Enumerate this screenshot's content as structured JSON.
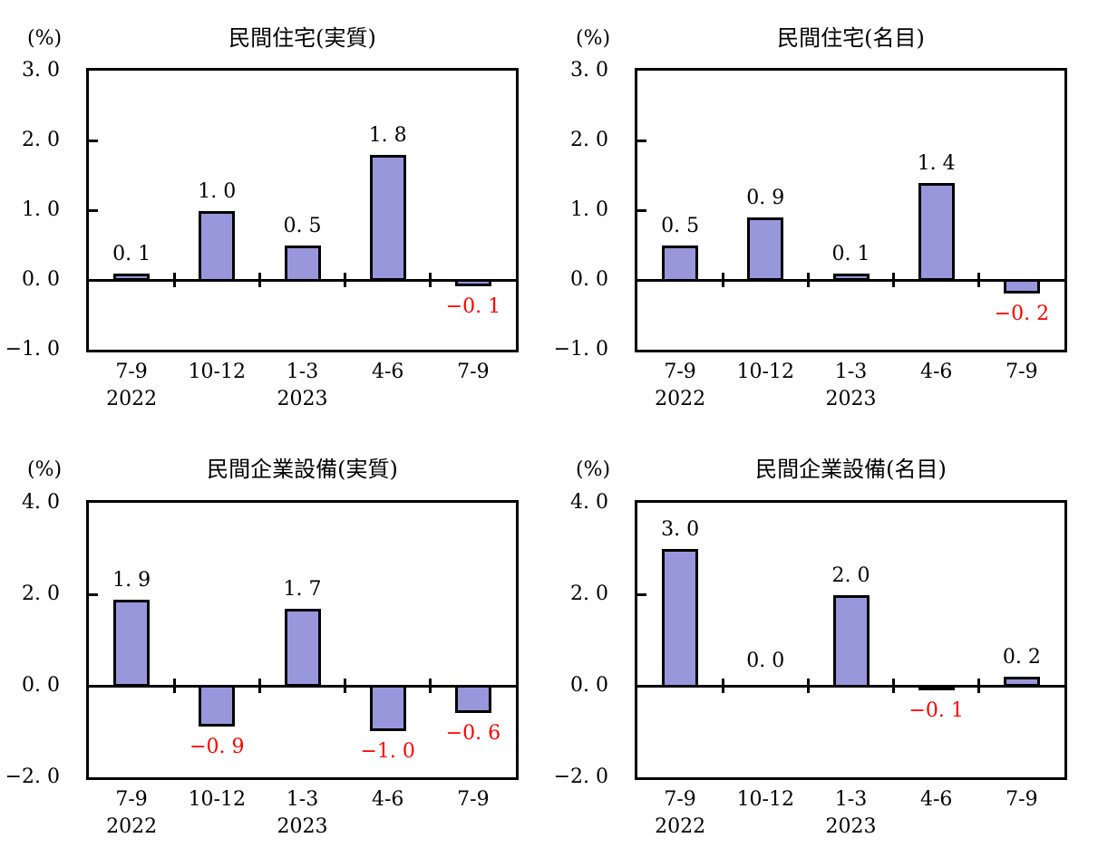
{
  "figure": {
    "background": "#ffffff",
    "unit_label": "(%)",
    "colors": {
      "bar_fill": "#9897DB",
      "bar_border": "#000000",
      "axis": "#000000",
      "text": "#000000",
      "negative_value_label": "#FF0000"
    }
  },
  "chart_data": [
    {
      "type": "bar",
      "title": "民間住宅(実質)",
      "unit_label": "(%)",
      "categories": [
        "7-9",
        "10-12",
        "1-3",
        "4-6",
        "7-9"
      ],
      "year_labels": [
        {
          "slot": 0,
          "text": "2022"
        },
        {
          "slot": 2,
          "text": "2023"
        }
      ],
      "values": [
        0.1,
        1.0,
        0.5,
        1.8,
        -0.1
      ],
      "value_labels": [
        "0. 1",
        "1. 0",
        "0. 5",
        "1. 8",
        "−0. 1"
      ],
      "ylim": [
        -1.0,
        3.0
      ],
      "ytick_values": [
        3.0,
        2.0,
        1.0,
        0.0,
        -1.0
      ],
      "ytick_labels": [
        "3. 0",
        "2. 0",
        "1. 0",
        "0. 0",
        "−1. 0"
      ],
      "grid": false,
      "legend": null
    },
    {
      "type": "bar",
      "title": "民間住宅(名目)",
      "unit_label": "(%)",
      "categories": [
        "7-9",
        "10-12",
        "1-3",
        "4-6",
        "7-9"
      ],
      "year_labels": [
        {
          "slot": 0,
          "text": "2022"
        },
        {
          "slot": 2,
          "text": "2023"
        }
      ],
      "values": [
        0.5,
        0.9,
        0.1,
        1.4,
        -0.2
      ],
      "value_labels": [
        "0. 5",
        "0. 9",
        "0. 1",
        "1. 4",
        "−0. 2"
      ],
      "ylim": [
        -1.0,
        3.0
      ],
      "ytick_values": [
        3.0,
        2.0,
        1.0,
        0.0,
        -1.0
      ],
      "ytick_labels": [
        "3. 0",
        "2. 0",
        "1. 0",
        "0. 0",
        "−1. 0"
      ],
      "grid": false,
      "legend": null
    },
    {
      "type": "bar",
      "title": "民間企業設備(実質)",
      "unit_label": "(%)",
      "categories": [
        "7-9",
        "10-12",
        "1-3",
        "4-6",
        "7-9"
      ],
      "year_labels": [
        {
          "slot": 0,
          "text": "2022"
        },
        {
          "slot": 2,
          "text": "2023"
        }
      ],
      "values": [
        1.9,
        -0.9,
        1.7,
        -1.0,
        -0.6
      ],
      "value_labels": [
        "1. 9",
        "−0. 9",
        "1. 7",
        "−1. 0",
        "−0. 6"
      ],
      "ylim": [
        -2.0,
        4.0
      ],
      "ytick_values": [
        4.0,
        2.0,
        0.0,
        -2.0
      ],
      "ytick_labels": [
        "4. 0",
        "2. 0",
        "0. 0",
        "−2. 0"
      ],
      "grid": false,
      "legend": null
    },
    {
      "type": "bar",
      "title": "民間企業設備(名目)",
      "unit_label": "(%)",
      "categories": [
        "7-9",
        "10-12",
        "1-3",
        "4-6",
        "7-9"
      ],
      "year_labels": [
        {
          "slot": 0,
          "text": "2022"
        },
        {
          "slot": 2,
          "text": "2023"
        }
      ],
      "values": [
        3.0,
        0.0,
        2.0,
        -0.1,
        0.2
      ],
      "value_labels": [
        "3. 0",
        "0. 0",
        "2. 0",
        "−0. 1",
        "0. 2"
      ],
      "ylim": [
        -2.0,
        4.0
      ],
      "ytick_values": [
        4.0,
        2.0,
        0.0,
        -2.0
      ],
      "ytick_labels": [
        "4. 0",
        "2. 0",
        "0. 0",
        "−2. 0"
      ],
      "grid": false,
      "legend": null
    }
  ]
}
